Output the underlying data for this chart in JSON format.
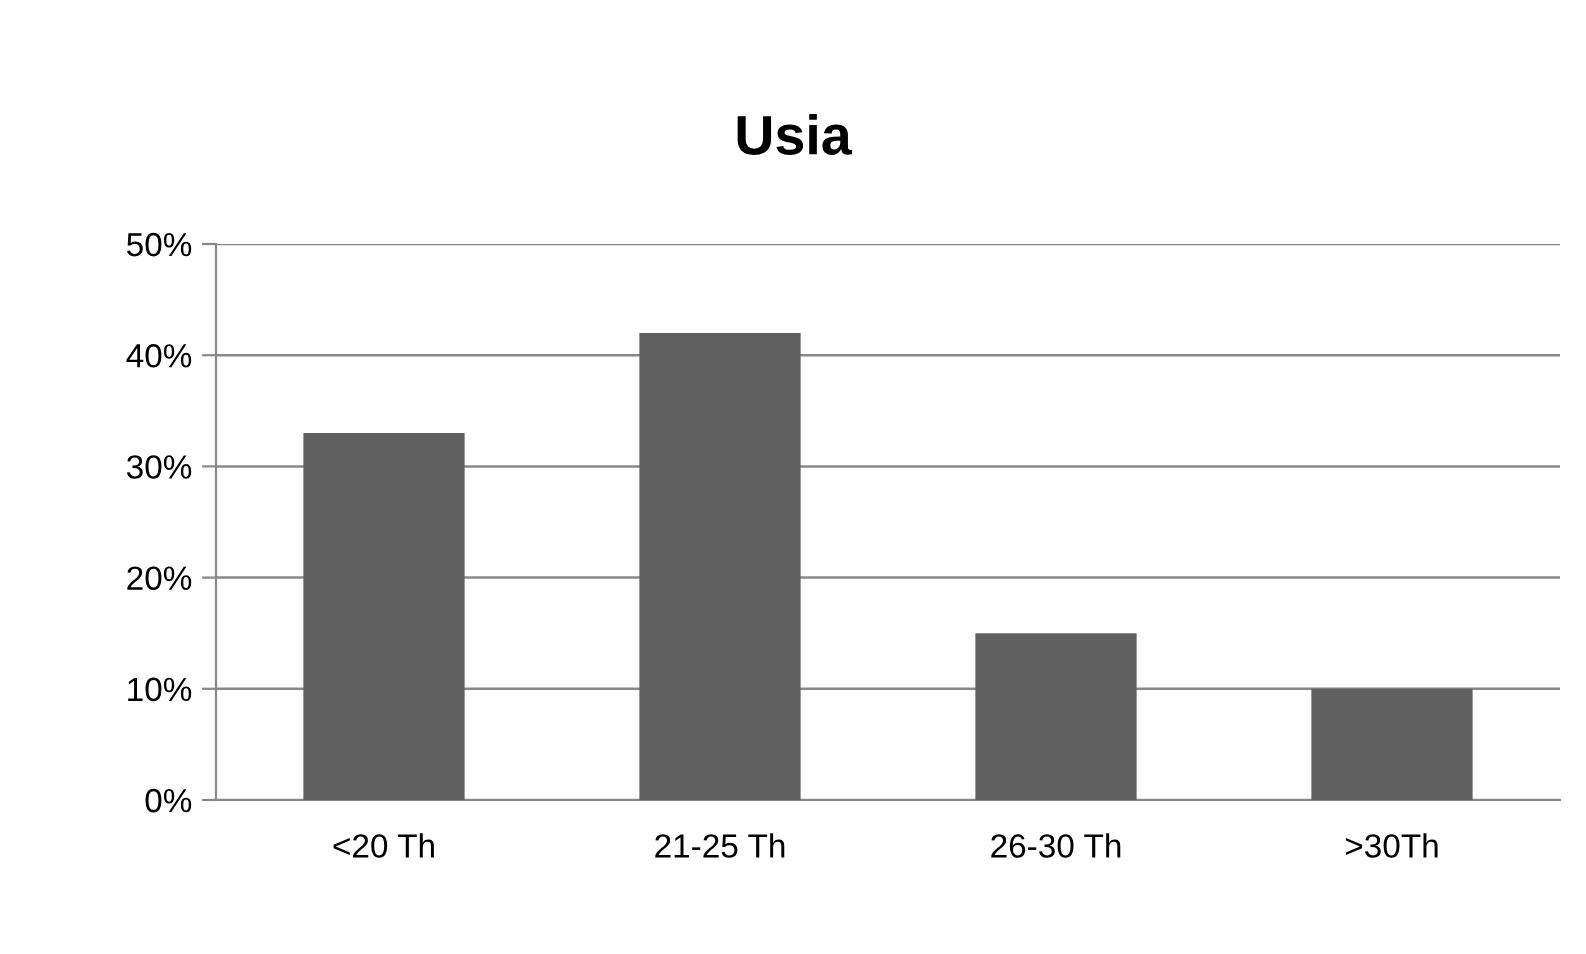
{
  "chart_data": {
    "type": "bar",
    "title": "Usia",
    "categories": [
      "<20 Th",
      "21-25 Th",
      "26-30 Th",
      ">30Th"
    ],
    "values": [
      33,
      42,
      15,
      10
    ],
    "color": "#606060",
    "ylim": [
      0,
      50
    ],
    "yticks": [
      {
        "value": 0,
        "label": "0%"
      },
      {
        "value": 10,
        "label": "10%"
      },
      {
        "value": 20,
        "label": "20%"
      },
      {
        "value": 30,
        "label": "30%"
      },
      {
        "value": 40,
        "label": "40%"
      },
      {
        "value": 50,
        "label": "50%"
      }
    ],
    "grid": "y",
    "legend": false
  }
}
